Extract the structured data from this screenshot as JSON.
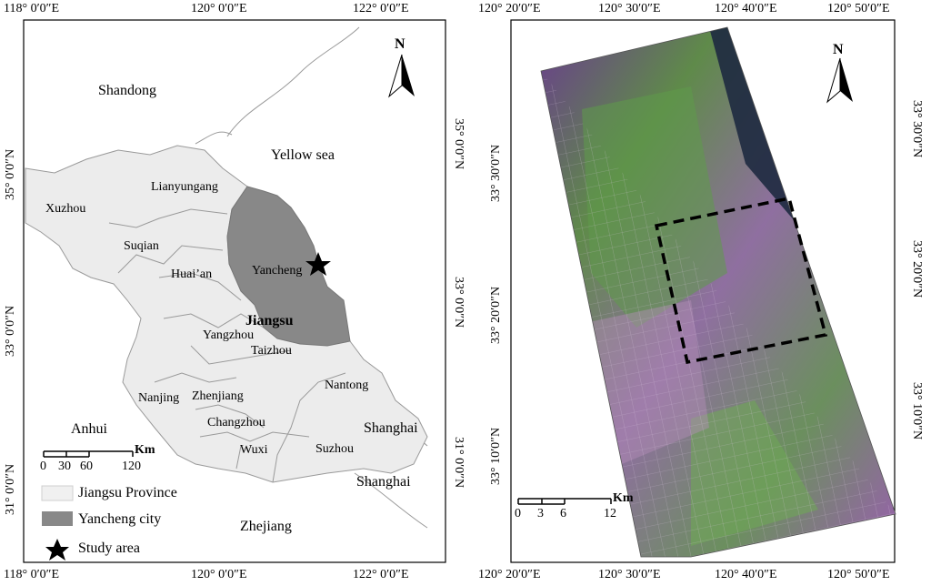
{
  "left_map": {
    "top_ticks": [
      "118° 0′0″E",
      "120° 0′0″E",
      "122° 0′0″E"
    ],
    "bottom_ticks": [
      "118° 0′0″E",
      "120° 0′0″E",
      "122° 0′0″E"
    ],
    "left_ticks": [
      "35° 0′0″N",
      "33° 0′0″N",
      "31° 0′0″N"
    ],
    "right_ticks": [
      "35° 0′0″N",
      "33° 0′0″N",
      "31° 0′0″N"
    ],
    "labels": {
      "shandong": "Shandong",
      "yellow_sea": "Yellow sea",
      "lianyungang": "Lianyungang",
      "xuzhou": "Xuzhou",
      "suqian": "Suqian",
      "huaian": "Huai’an",
      "yancheng": "Yancheng",
      "jiangsu": "Jiangsu",
      "yangzhou": "Yangzhou",
      "taizhou": "Taizhou",
      "nantong": "Nantong",
      "nanjing": "Nanjing",
      "zhenjiang": "Zhenjiang",
      "changzhou": "Changzhou",
      "wuxi": "Wuxi",
      "suzhou": "Suzhou",
      "shanghai1": "Shanghai",
      "shanghai2": "Shanghai",
      "anhui": "Anhui",
      "zhejiang": "Zhejiang"
    },
    "north": "N",
    "scale": {
      "unit": "Km",
      "ticks": [
        "0",
        "30",
        "60",
        "120"
      ]
    },
    "legend": [
      {
        "label": "Jiangsu Province",
        "color": "#f0f0f0"
      },
      {
        "label": "Yancheng city",
        "color": "#888888"
      },
      {
        "label": "Study area",
        "color": "#000000"
      }
    ]
  },
  "right_map": {
    "top_ticks": [
      "120° 20′0″E",
      "120° 30′0″E",
      "120° 40′0″E",
      "120° 50′0″E"
    ],
    "bottom_ticks": [
      "120° 20′0″E",
      "120° 30′0″E",
      "120° 40′0″E",
      "120° 50′0″E"
    ],
    "left_ticks": [
      "33° 30′0″N",
      "33° 20′0″N",
      "33° 10′0″N"
    ],
    "right_ticks": [
      "33° 30′0″N",
      "33° 20′0″N",
      "33° 10′0″N"
    ],
    "north": "N",
    "scale": {
      "unit": "Km",
      "ticks": [
        "0",
        "3",
        "6",
        "12"
      ]
    }
  }
}
